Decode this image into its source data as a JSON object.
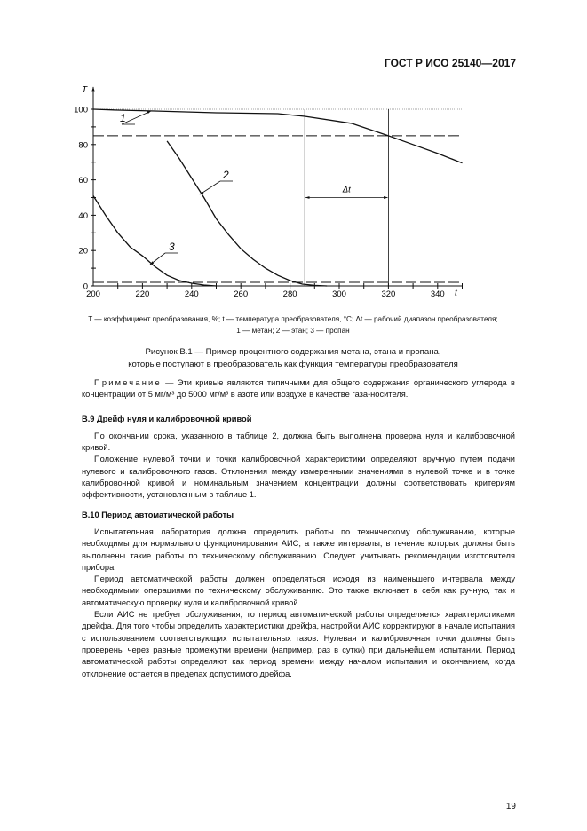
{
  "header": {
    "doc_id": "ГОСТ Р ИСО 25140—2017"
  },
  "chart_data": {
    "type": "line",
    "ylabel": "T",
    "xlabel": "t",
    "xlim": [
      200,
      350
    ],
    "ylim": [
      0,
      100
    ],
    "x_ticks": [
      200,
      220,
      240,
      260,
      280,
      300,
      320,
      340
    ],
    "y_ticks": [
      0,
      20,
      40,
      60,
      80,
      100
    ],
    "series": [
      {
        "name": "1",
        "points": [
          [
            200,
            100
          ],
          [
            210,
            99.5
          ],
          [
            225,
            99
          ],
          [
            250,
            98
          ],
          [
            275,
            97.5
          ],
          [
            286,
            96
          ],
          [
            305,
            92
          ],
          [
            320,
            85
          ],
          [
            330,
            80
          ],
          [
            340,
            75
          ],
          [
            350,
            69.5
          ]
        ]
      },
      {
        "name": "2",
        "points": [
          [
            230,
            82
          ],
          [
            235,
            72
          ],
          [
            240,
            61
          ],
          [
            245,
            50
          ],
          [
            250,
            38
          ],
          [
            255,
            29
          ],
          [
            260,
            21
          ],
          [
            265,
            15
          ],
          [
            270,
            10
          ],
          [
            275,
            6
          ],
          [
            280,
            3
          ],
          [
            285,
            1
          ],
          [
            290,
            0.3
          ],
          [
            295,
            0
          ]
        ]
      },
      {
        "name": "3",
        "points": [
          [
            200,
            51
          ],
          [
            205,
            40
          ],
          [
            210,
            30
          ],
          [
            215,
            22
          ],
          [
            220,
            17
          ],
          [
            225,
            11
          ],
          [
            230,
            6
          ],
          [
            235,
            3
          ],
          [
            240,
            1.5
          ],
          [
            245,
            0.5
          ],
          [
            250,
            0
          ]
        ]
      }
    ],
    "reference_lines": {
      "horizontal_dashed": [
        85,
        2
      ],
      "vertical": [
        286,
        320
      ]
    },
    "annotation": "Δt",
    "grid": false
  },
  "caption": {
    "legend_line1": "T — коэффициент преобразования, %; t — температура преобразователя, °C; Δt — рабочий диапазон преобразователя;",
    "legend_line2": "1 — метан; 2 — этан; 3 — пропан",
    "figure_title_1": "Рисунок В.1 — Пример процентного содержания метана, этана и пропана,",
    "figure_title_2": "которые поступают в преобразователь как функция температуры преобразователя"
  },
  "note": {
    "label": "Примечание",
    "text": " — Эти кривые являются типичными для общего содержания органического углерода в концентрации от 5 мг/м³ до 5000 мг/м³ в азоте или воздухе в качестве газа-носителя."
  },
  "sections": [
    {
      "heading": "В.9 Дрейф нуля и калибровочной кривой",
      "paragraphs": [
        "По окончании срока, указанного в таблице 2, должна быть выполнена проверка нуля и калибровочной кривой.",
        "Положение нулевой точки и точки калибровочной характеристики определяют вручную путем подачи нулевого и калибровочного газов. Отклонения между измеренными значениями в нулевой точке и в точке калибровочной кривой и номинальным значением концентрации должны соответствовать критериям эффективности, установленным в таблице 1."
      ]
    },
    {
      "heading": "В.10 Период автоматической работы",
      "paragraphs": [
        "Испытательная лаборатория должна определить работы по техническому обслуживанию, которые необходимы для нормального функционирования АИС, а также интервалы, в течение которых должны быть выполнены такие работы по техническому обслуживанию. Следует учитывать рекомендации изготовителя прибора.",
        "Период автоматической работы должен определяться исходя из наименьшего интервала между необходимыми операциями по техническому обслуживанию. Это также включает в себя как ручную, так и автоматическую проверку нуля и калибровочной кривой.",
        "Если АИС не требует обслуживания, то период автоматической работы определяется характеристиками дрейфа. Для того чтобы определить характеристики дрейфа, настройки АИС корректируют в начале испытания с использованием соответствующих испытательных газов. Нулевая и калибровочная точки должны быть проверены через равные промежутки времени (например, раз в сутки) при дальнейшем испытании. Период автоматической работы определяют как период времени между началом испытания и окончанием, когда отклонение остается в пределах допустимого дрейфа."
      ]
    }
  ],
  "page_number": "19"
}
